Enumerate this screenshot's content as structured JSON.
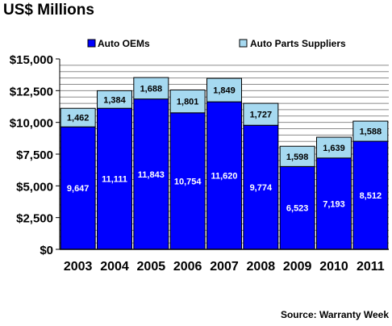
{
  "chart_data": {
    "type": "bar",
    "stacked": true,
    "title": "US$ Millions",
    "source": "Source: Warranty Week",
    "categories": [
      "2003",
      "2004",
      "2005",
      "2006",
      "2007",
      "2008",
      "2009",
      "2010",
      "2011"
    ],
    "series": [
      {
        "name": "Auto OEMs",
        "color": "#0000ff",
        "label_color": "#ffffff",
        "values": [
          9647,
          11111,
          11843,
          10754,
          11620,
          9774,
          6523,
          7193,
          8512
        ],
        "labels": [
          "9,647",
          "11,111",
          "11,843",
          "10,754",
          "11,620",
          "9,774",
          "6,523",
          "7,193",
          "8,512"
        ]
      },
      {
        "name": "Auto Parts Suppliers",
        "color": "#a6d9f0",
        "label_color": "#000000",
        "values": [
          1462,
          1384,
          1688,
          1801,
          1849,
          1727,
          1598,
          1639,
          1588
        ],
        "labels": [
          "1,462",
          "1,384",
          "1,688",
          "1,801",
          "1,849",
          "1,727",
          "1,598",
          "1,639",
          "1,588"
        ]
      }
    ],
    "ylim": [
      0,
      15000
    ],
    "y_ticks": [
      0,
      2500,
      5000,
      7500,
      10000,
      12500,
      15000
    ],
    "y_tick_labels": [
      "$0",
      "$2,500",
      "$5,000",
      "$7,500",
      "$10,000",
      "$12,500",
      "$15,000"
    ],
    "grid": true,
    "legend_position": "top"
  }
}
